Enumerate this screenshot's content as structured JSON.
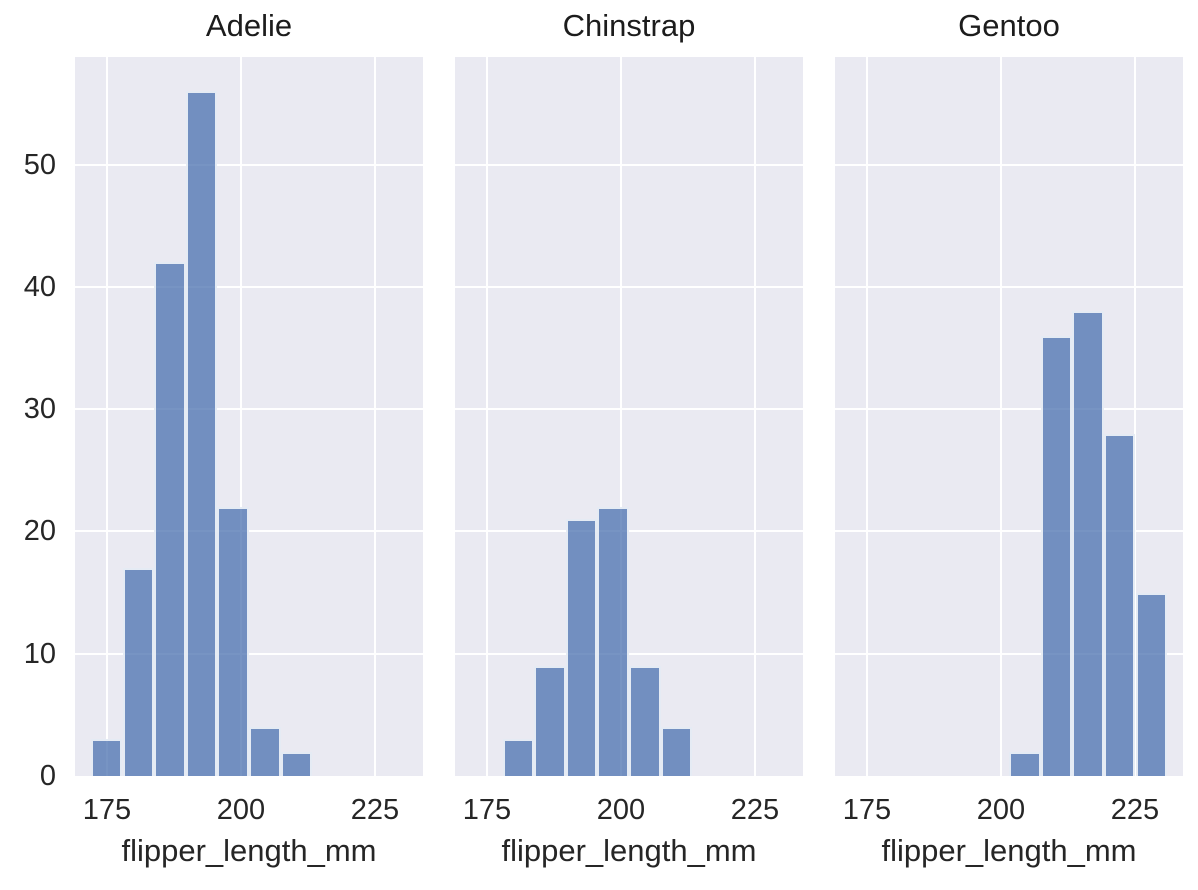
{
  "style": {
    "panel_bg": "#eaeaf2",
    "grid_color": "#ffffff",
    "bar_fill_hex": "#4c72b0",
    "bar_alpha": 0.76,
    "text_color": "#262626",
    "figure_bg": "#ffffff"
  },
  "chart_data": {
    "type": "bar",
    "subtype": "faceted-histogram",
    "xlabel": "flipper_length_mm",
    "ylabel": "",
    "xlim": [
      169.05,
      233.95
    ],
    "ylim": [
      0,
      58.8
    ],
    "x_ticks": [
      175,
      200,
      225
    ],
    "y_ticks": [
      0,
      10,
      20,
      30,
      40,
      50
    ],
    "grid": true,
    "legend": false,
    "bin_width": 5.9,
    "facets": [
      {
        "title": "Adelie",
        "bin_edges": [
          172.0,
          177.9,
          183.8,
          189.7,
          195.6,
          201.5,
          207.4,
          213.3
        ],
        "counts": [
          3,
          17,
          42,
          56,
          22,
          4,
          2
        ]
      },
      {
        "title": "Chinstrap",
        "bin_edges": [
          177.9,
          183.8,
          189.7,
          195.6,
          201.5,
          207.4,
          213.3
        ],
        "counts": [
          3,
          9,
          21,
          22,
          9,
          4
        ]
      },
      {
        "title": "Gentoo",
        "bin_edges": [
          201.5,
          207.4,
          213.3,
          219.2,
          225.1,
          231.0
        ],
        "counts": [
          2,
          36,
          38,
          28,
          15
        ]
      }
    ]
  }
}
